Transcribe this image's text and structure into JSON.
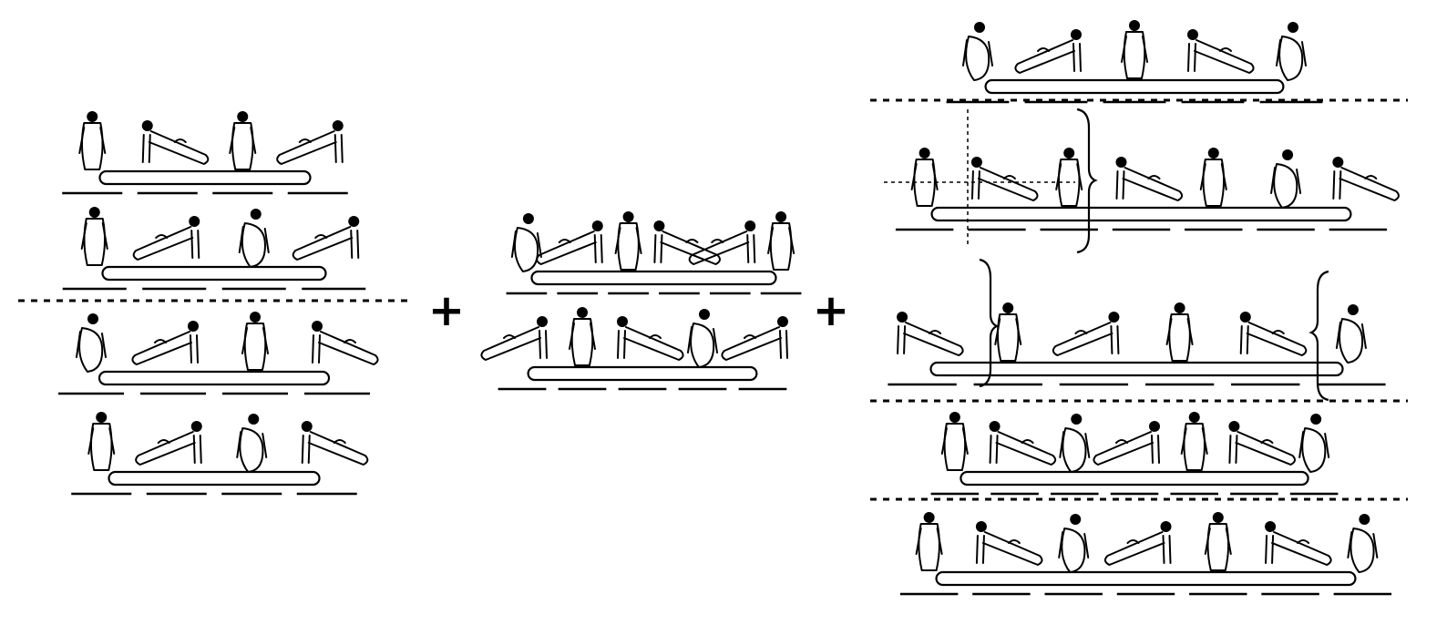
{
  "operators": {
    "plus_1": "+",
    "plus_2": "+"
  },
  "colors": {
    "ink": "#000000",
    "background": "#ffffff"
  },
  "groups": [
    {
      "id": "group-left",
      "rows": [
        {
          "id": "left-row-1",
          "figures": [
            {
              "pose": "stand"
            },
            {
              "pose": "lean-left"
            },
            {
              "pose": "stand"
            },
            {
              "pose": "lean-right"
            }
          ],
          "dashed_after": false
        },
        {
          "id": "left-row-2",
          "figures": [
            {
              "pose": "stand"
            },
            {
              "pose": "lean-right"
            },
            {
              "pose": "tuck"
            },
            {
              "pose": "lean-right"
            }
          ],
          "dashed_after": true
        },
        {
          "id": "left-row-3",
          "figures": [
            {
              "pose": "tuck"
            },
            {
              "pose": "lean-right"
            },
            {
              "pose": "stand"
            },
            {
              "pose": "lean-left"
            }
          ],
          "dashed_after": false
        },
        {
          "id": "left-row-4",
          "figures": [
            {
              "pose": "stand"
            },
            {
              "pose": "lean-right"
            },
            {
              "pose": "tuck"
            },
            {
              "pose": "lean-left"
            }
          ],
          "dashed_after": false
        }
      ]
    },
    {
      "id": "group-middle",
      "rows": [
        {
          "id": "mid-row-1",
          "figures": [
            {
              "pose": "tuck"
            },
            {
              "pose": "lean-right"
            },
            {
              "pose": "stand"
            },
            {
              "pose": "lean-left"
            },
            {
              "pose": "lean-right"
            },
            {
              "pose": "stand"
            }
          ],
          "dashed_after": false
        },
        {
          "id": "mid-row-2",
          "figures": [
            {
              "pose": "lean-right"
            },
            {
              "pose": "stand"
            },
            {
              "pose": "lean-left"
            },
            {
              "pose": "tuck"
            },
            {
              "pose": "lean-right"
            }
          ],
          "dashed_after": false
        }
      ]
    },
    {
      "id": "group-right",
      "rows": [
        {
          "id": "right-row-1",
          "figures": [
            {
              "pose": "tuck"
            },
            {
              "pose": "lean-right"
            },
            {
              "pose": "stand"
            },
            {
              "pose": "lean-left"
            },
            {
              "pose": "tuck"
            }
          ],
          "dashed_after": true
        },
        {
          "id": "right-row-2",
          "figures": [
            {
              "pose": "stand"
            },
            {
              "pose": "lean-left"
            },
            {
              "pose": "stand"
            },
            {
              "pose": "lean-left"
            },
            {
              "pose": "stand"
            },
            {
              "pose": "tuck"
            },
            {
              "pose": "lean-left"
            }
          ],
          "dashed_after": false
        },
        {
          "id": "right-row-3",
          "figures": [
            {
              "pose": "lean-left"
            },
            {
              "pose": "stand"
            },
            {
              "pose": "lean-right"
            },
            {
              "pose": "stand"
            },
            {
              "pose": "lean-left"
            },
            {
              "pose": "tuck"
            }
          ],
          "dashed_after": true
        },
        {
          "id": "right-row-4",
          "figures": [
            {
              "pose": "stand"
            },
            {
              "pose": "lean-left"
            },
            {
              "pose": "tuck"
            },
            {
              "pose": "lean-right"
            },
            {
              "pose": "stand"
            },
            {
              "pose": "lean-left"
            },
            {
              "pose": "tuck"
            }
          ],
          "dashed_after": true
        },
        {
          "id": "right-row-5",
          "figures": [
            {
              "pose": "stand"
            },
            {
              "pose": "lean-left"
            },
            {
              "pose": "tuck"
            },
            {
              "pose": "lean-right"
            },
            {
              "pose": "stand"
            },
            {
              "pose": "lean-left"
            },
            {
              "pose": "tuck"
            }
          ],
          "dashed_after": false
        }
      ]
    }
  ]
}
